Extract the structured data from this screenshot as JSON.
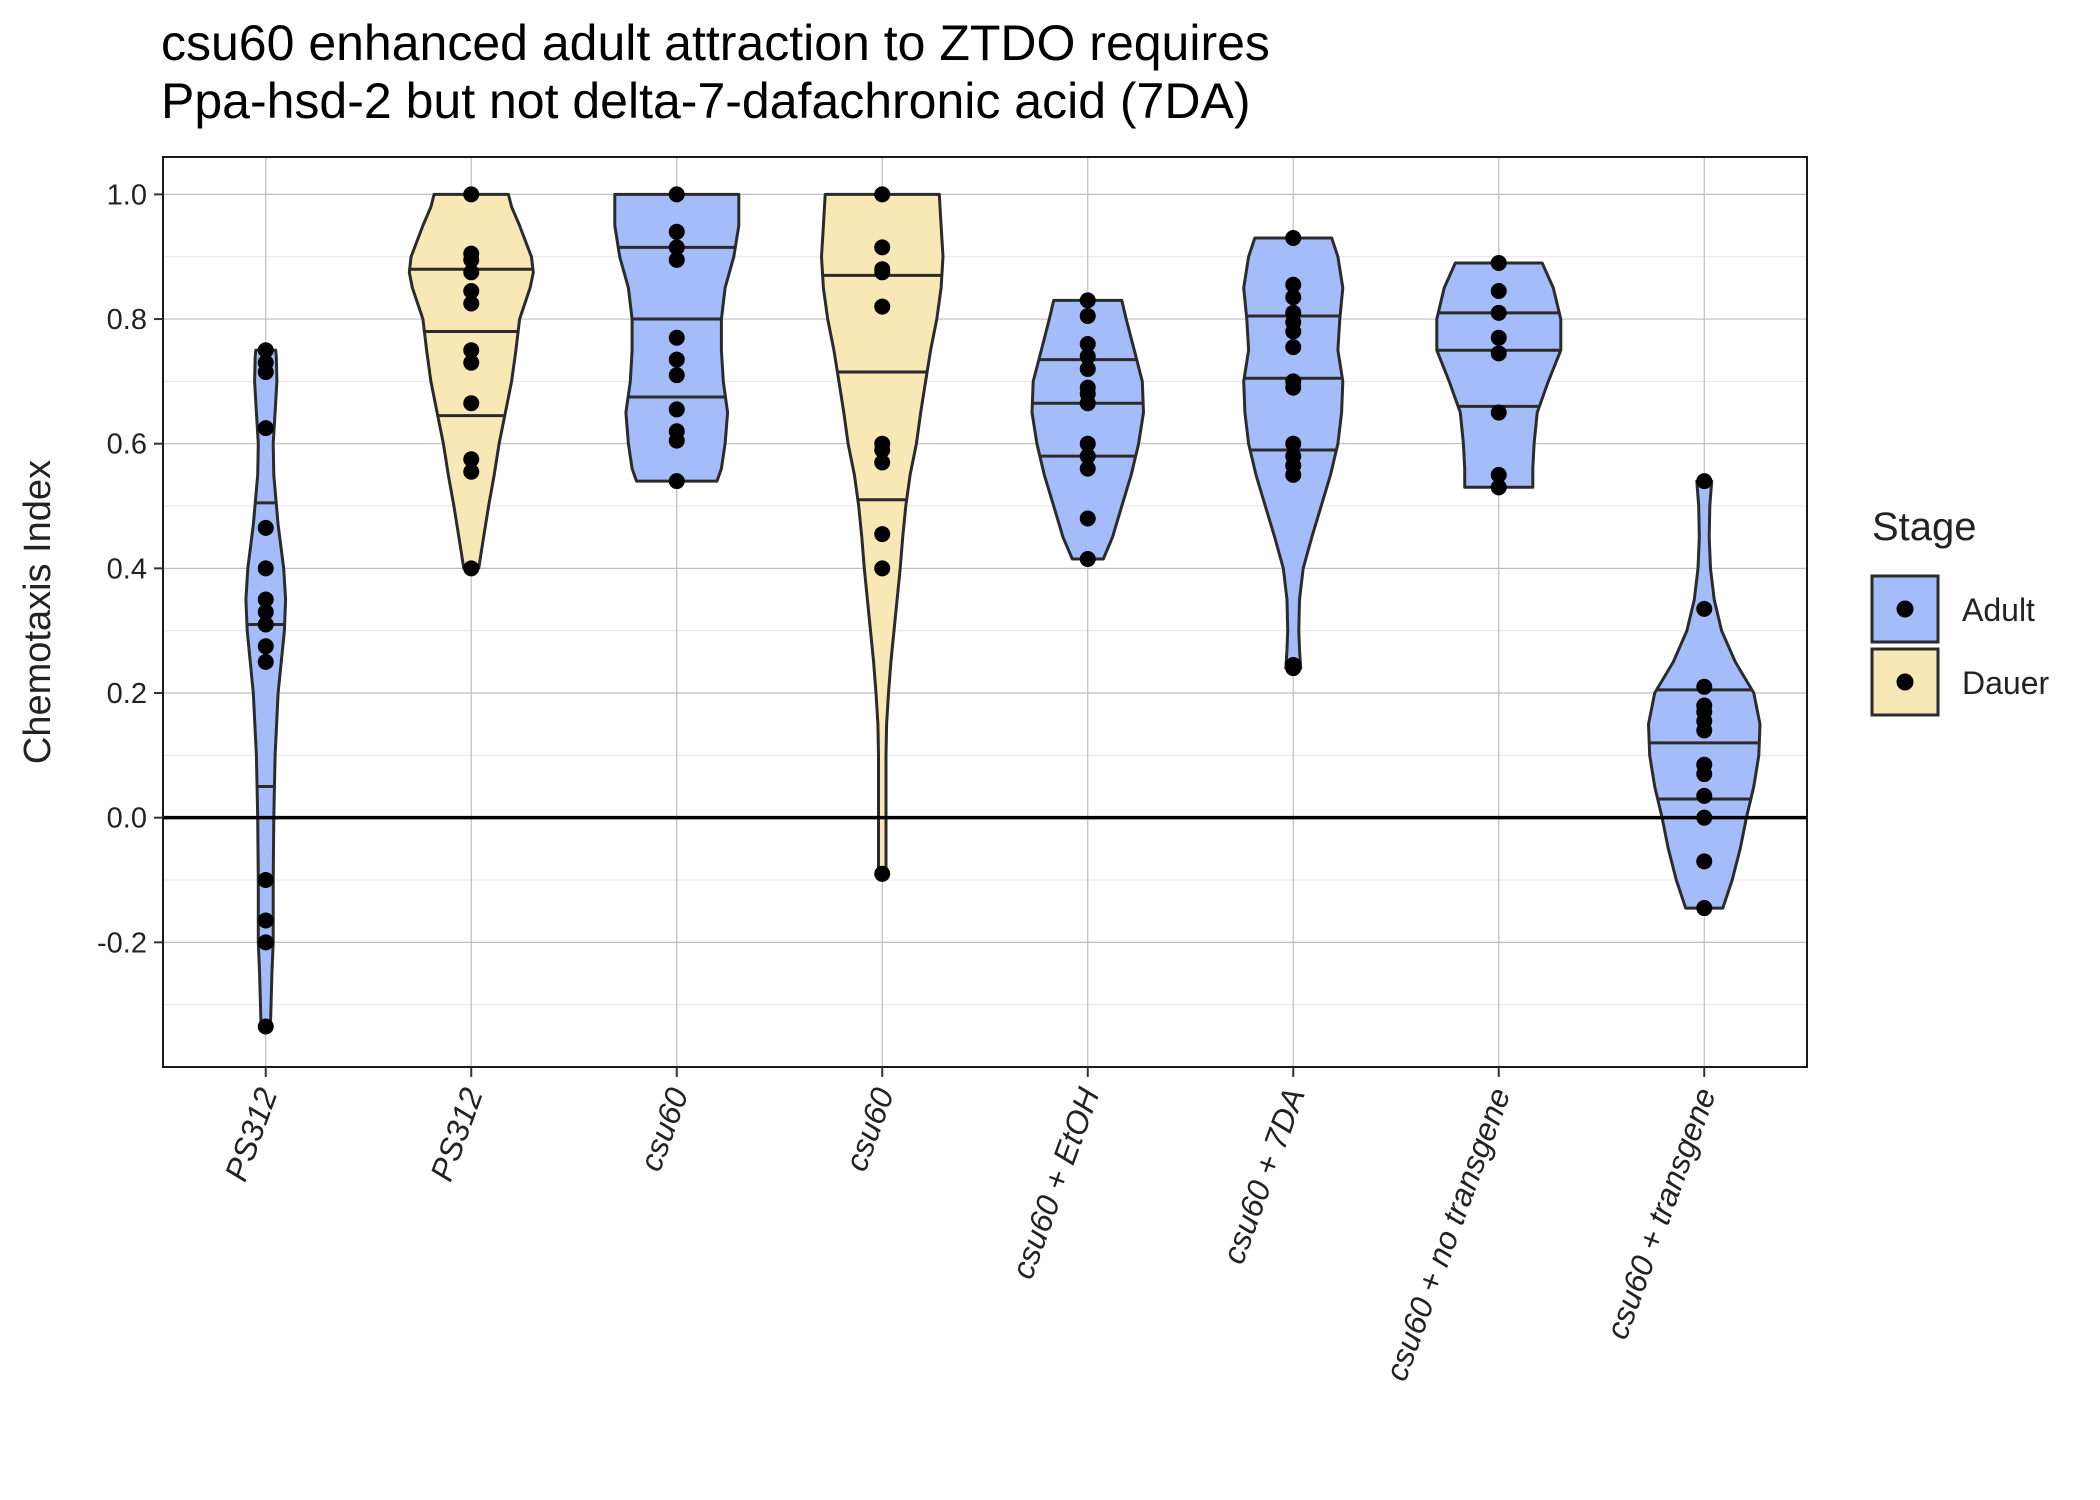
{
  "title_lines": [
    "csu60 enhanced adult attraction to ZTDO requires",
    "Ppa-hsd-2 but not delta-7-dafachronic acid (7DA)"
  ],
  "colors": {
    "Adult": "#a4bcf9",
    "Dauer": "#f8e8b5",
    "outline": "#2b2b2b",
    "point": "#000000",
    "grid_major": "#bdbdbd",
    "grid_minor": "#e4e4e4"
  },
  "chart_data": {
    "type": "violin",
    "title": "csu60 enhanced adult attraction to ZTDO requires Ppa-hsd-2 but not delta-7-dafachronic acid (7DA)",
    "xlabel": "",
    "ylabel": "Chemotaxis Index",
    "ylim": [
      -0.4,
      1.06
    ],
    "yticks": [
      1.0,
      0.8,
      0.6,
      0.4,
      0.2,
      0.0,
      -0.2
    ],
    "ytick_labels": [
      "1.0",
      "0.8",
      "0.6",
      "0.4",
      "0.2",
      "0.0",
      "-0.2"
    ],
    "hline": 0.0,
    "grid": true,
    "legend": {
      "title": "Stage",
      "position": "right",
      "entries": [
        "Adult",
        "Dauer"
      ]
    },
    "categories": [
      "PS312",
      "PS312",
      "csu60",
      "csu60",
      "csu60 + EtOH",
      "csu60 + 7DA",
      "csu60 + no transgene",
      "csu60 + transgene"
    ],
    "groups": [
      {
        "label": "PS312",
        "stage": "Adult",
        "points": [
          0.75,
          0.73,
          0.715,
          0.625,
          0.465,
          0.4,
          0.35,
          0.33,
          0.31,
          0.275,
          0.25,
          -0.1,
          -0.165,
          -0.2,
          -0.335
        ],
        "quartiles": [
          0.05,
          0.31,
          0.505
        ],
        "profile": [
          [
            -0.34,
            0.07
          ],
          [
            -0.32,
            0.08
          ],
          [
            -0.25,
            0.1
          ],
          [
            -0.2,
            0.12
          ],
          [
            -0.1,
            0.12
          ],
          [
            0.0,
            0.13
          ],
          [
            0.1,
            0.15
          ],
          [
            0.2,
            0.2
          ],
          [
            0.3,
            0.3
          ],
          [
            0.35,
            0.32
          ],
          [
            0.4,
            0.29
          ],
          [
            0.47,
            0.2
          ],
          [
            0.55,
            0.13
          ],
          [
            0.6,
            0.12
          ],
          [
            0.65,
            0.15
          ],
          [
            0.7,
            0.18
          ],
          [
            0.74,
            0.17
          ],
          [
            0.75,
            0.16
          ]
        ]
      },
      {
        "label": "PS312",
        "stage": "Dauer",
        "points": [
          1.0,
          0.905,
          0.895,
          0.875,
          0.845,
          0.825,
          0.75,
          0.73,
          0.665,
          0.575,
          0.555,
          0.4
        ],
        "quartiles": [
          0.645,
          0.78,
          0.88
        ],
        "profile": [
          [
            0.4,
            0.12
          ],
          [
            0.45,
            0.2
          ],
          [
            0.5,
            0.28
          ],
          [
            0.55,
            0.37
          ],
          [
            0.6,
            0.45
          ],
          [
            0.65,
            0.55
          ],
          [
            0.7,
            0.65
          ],
          [
            0.75,
            0.72
          ],
          [
            0.8,
            0.78
          ],
          [
            0.85,
            0.95
          ],
          [
            0.875,
            1.0
          ],
          [
            0.9,
            0.97
          ],
          [
            0.95,
            0.78
          ],
          [
            0.98,
            0.65
          ],
          [
            1.0,
            0.6
          ]
        ]
      },
      {
        "label": "csu60",
        "stage": "Adult",
        "points": [
          1.0,
          0.94,
          0.915,
          0.895,
          0.77,
          0.735,
          0.71,
          0.655,
          0.62,
          0.605,
          0.54
        ],
        "quartiles": [
          0.675,
          0.8,
          0.915
        ],
        "profile": [
          [
            0.54,
            0.65
          ],
          [
            0.56,
            0.72
          ],
          [
            0.6,
            0.78
          ],
          [
            0.65,
            0.82
          ],
          [
            0.7,
            0.75
          ],
          [
            0.75,
            0.72
          ],
          [
            0.8,
            0.72
          ],
          [
            0.85,
            0.78
          ],
          [
            0.9,
            0.92
          ],
          [
            0.95,
            1.0
          ],
          [
            1.0,
            1.0
          ]
        ]
      },
      {
        "label": "csu60",
        "stage": "Dauer",
        "points": [
          1.0,
          0.915,
          0.88,
          0.875,
          0.82,
          0.6,
          0.59,
          0.57,
          0.455,
          0.4,
          -0.09
        ],
        "quartiles": [
          0.51,
          0.715,
          0.87
        ],
        "profile": [
          [
            -0.09,
            0.06
          ],
          [
            -0.05,
            0.06
          ],
          [
            0.0,
            0.06
          ],
          [
            0.05,
            0.06
          ],
          [
            0.1,
            0.06
          ],
          [
            0.15,
            0.07
          ],
          [
            0.2,
            0.1
          ],
          [
            0.25,
            0.14
          ],
          [
            0.3,
            0.19
          ],
          [
            0.35,
            0.24
          ],
          [
            0.4,
            0.29
          ],
          [
            0.45,
            0.33
          ],
          [
            0.5,
            0.38
          ],
          [
            0.55,
            0.45
          ],
          [
            0.6,
            0.55
          ],
          [
            0.65,
            0.62
          ],
          [
            0.7,
            0.7
          ],
          [
            0.75,
            0.78
          ],
          [
            0.8,
            0.88
          ],
          [
            0.85,
            0.95
          ],
          [
            0.9,
            0.98
          ],
          [
            0.95,
            0.95
          ],
          [
            1.0,
            0.92
          ]
        ]
      },
      {
        "label": "csu60 + EtOH",
        "stage": "Adult",
        "points": [
          0.83,
          0.805,
          0.76,
          0.74,
          0.72,
          0.69,
          0.68,
          0.665,
          0.6,
          0.58,
          0.56,
          0.48,
          0.415
        ],
        "quartiles": [
          0.58,
          0.665,
          0.735
        ],
        "profile": [
          [
            0.415,
            0.25
          ],
          [
            0.45,
            0.4
          ],
          [
            0.5,
            0.55
          ],
          [
            0.55,
            0.7
          ],
          [
            0.6,
            0.82
          ],
          [
            0.65,
            0.9
          ],
          [
            0.7,
            0.88
          ],
          [
            0.75,
            0.75
          ],
          [
            0.8,
            0.62
          ],
          [
            0.83,
            0.55
          ]
        ]
      },
      {
        "label": "csu60 + 7DA",
        "stage": "Adult",
        "points": [
          0.93,
          0.855,
          0.835,
          0.81,
          0.795,
          0.78,
          0.755,
          0.7,
          0.69,
          0.6,
          0.58,
          0.565,
          0.55,
          0.245,
          0.24
        ],
        "quartiles": [
          0.59,
          0.705,
          0.805
        ],
        "profile": [
          [
            0.24,
            0.12
          ],
          [
            0.27,
            0.1
          ],
          [
            0.3,
            0.09
          ],
          [
            0.35,
            0.1
          ],
          [
            0.4,
            0.16
          ],
          [
            0.45,
            0.3
          ],
          [
            0.5,
            0.45
          ],
          [
            0.55,
            0.6
          ],
          [
            0.6,
            0.72
          ],
          [
            0.65,
            0.78
          ],
          [
            0.7,
            0.8
          ],
          [
            0.75,
            0.72
          ],
          [
            0.8,
            0.75
          ],
          [
            0.85,
            0.8
          ],
          [
            0.9,
            0.72
          ],
          [
            0.93,
            0.62
          ]
        ]
      },
      {
        "label": "csu60 + no transgene",
        "stage": "Adult",
        "points": [
          0.89,
          0.845,
          0.81,
          0.77,
          0.745,
          0.65,
          0.55,
          0.53
        ],
        "quartiles": [
          0.66,
          0.75,
          0.81
        ],
        "profile": [
          [
            0.53,
            0.55
          ],
          [
            0.56,
            0.55
          ],
          [
            0.6,
            0.57
          ],
          [
            0.65,
            0.62
          ],
          [
            0.7,
            0.8
          ],
          [
            0.75,
            1.0
          ],
          [
            0.8,
            1.0
          ],
          [
            0.85,
            0.88
          ],
          [
            0.89,
            0.7
          ]
        ]
      },
      {
        "label": "csu60 + transgene",
        "stage": "Adult",
        "points": [
          0.54,
          0.335,
          0.21,
          0.18,
          0.17,
          0.155,
          0.14,
          0.085,
          0.07,
          0.035,
          0.0,
          -0.07,
          -0.145
        ],
        "quartiles": [
          0.03,
          0.12,
          0.205
        ],
        "profile": [
          [
            -0.145,
            0.3
          ],
          [
            -0.1,
            0.45
          ],
          [
            -0.05,
            0.58
          ],
          [
            0.0,
            0.68
          ],
          [
            0.05,
            0.8
          ],
          [
            0.1,
            0.88
          ],
          [
            0.15,
            0.9
          ],
          [
            0.2,
            0.8
          ],
          [
            0.25,
            0.5
          ],
          [
            0.3,
            0.28
          ],
          [
            0.35,
            0.16
          ],
          [
            0.4,
            0.1
          ],
          [
            0.45,
            0.08
          ],
          [
            0.5,
            0.09
          ],
          [
            0.54,
            0.12
          ]
        ]
      }
    ]
  }
}
